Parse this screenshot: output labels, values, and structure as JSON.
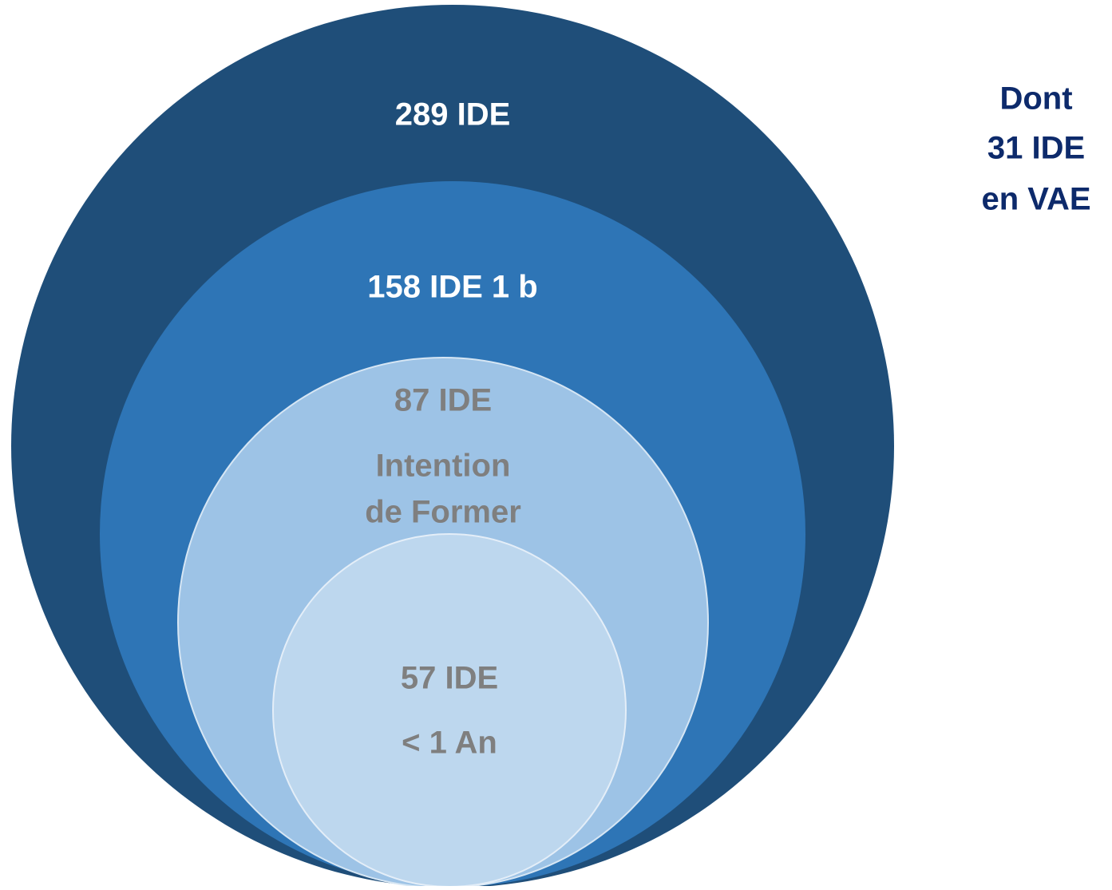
{
  "circles": [
    {
      "lines": [
        "289 IDE"
      ]
    },
    {
      "lines": [
        "158 IDE 1 b"
      ]
    },
    {
      "lines": [
        "87 IDE",
        "Intention",
        "de Former"
      ]
    },
    {
      "lines": [
        "57 IDE",
        "< 1 An"
      ]
    }
  ],
  "note": {
    "lines": [
      "Dont",
      "31 IDE",
      "en VAE"
    ]
  }
}
